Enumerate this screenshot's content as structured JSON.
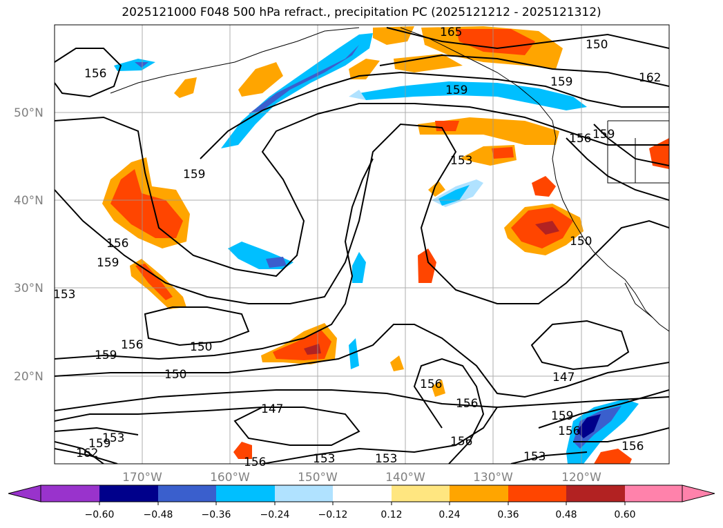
{
  "title": "2025121000 F048 500 hPa refract., precipitation PC (2025121212 - 2025121312)",
  "lat_labels": [
    "50°N",
    "40°N",
    "30°N",
    "20°N"
  ],
  "lon_labels": [
    "170°W",
    "160°W",
    "150°W",
    "140°W",
    "130°W",
    "120°W"
  ],
  "contour_labels": [
    "156",
    "159",
    "165",
    "162",
    "159",
    "159",
    "156",
    "159",
    "153",
    "156",
    "159",
    "153",
    "159",
    "156",
    "150",
    "150",
    "150",
    "147",
    "147",
    "156",
    "156",
    "156",
    "159",
    "156",
    "153",
    "153",
    "153",
    "159",
    "156",
    "153",
    "162",
    "156",
    "150"
  ],
  "colorbar": {
    "ticks": [
      "−0.60",
      "−0.48",
      "−0.36",
      "−0.24",
      "−0.12",
      "0.12",
      "0.24",
      "0.36",
      "0.48",
      "0.60"
    ],
    "colors": {
      "under": "#9933cc",
      "c1": "#00008b",
      "c2": "#3a5fcd",
      "c3": "#00bfff",
      "c4": "#b0e2ff",
      "c5": "#ffffff",
      "c6": "#ffe680",
      "c7": "#ffa500",
      "c8": "#ff4500",
      "c9": "#b22222",
      "over": "#ff82ab"
    }
  }
}
